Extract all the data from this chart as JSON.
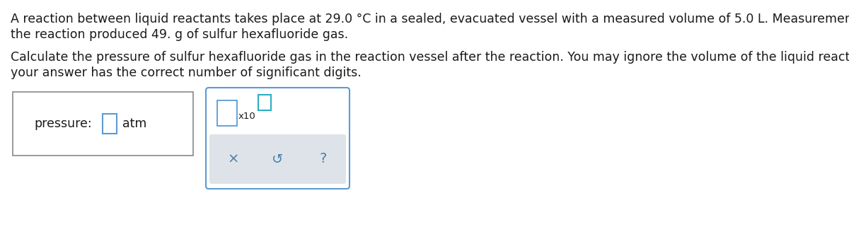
{
  "background_color": "#ffffff",
  "text_color": "#1a1a1a",
  "para1_line1": "A reaction between liquid reactants takes place at 29.0 °C in a sealed, evacuated vessel with a measured volume of 5.0 L. Measurements show that",
  "para1_line2": "the reaction produced 49. g of sulfur hexafluoride gas.",
  "para2_line1": "Calculate the pressure of sulfur hexafluoride gas in the reaction vessel after the reaction. You may ignore the volume of the liquid reactants. Be sure",
  "para2_line2": "your answer has the correct number of significant digits.",
  "label_pressure": "pressure:",
  "label_atm": "atm",
  "input_field_border": "#5b9bd5",
  "calc_box_border": "#5b9bd5",
  "bottom_bar_bg": "#dde3e8",
  "symbol_color": "#4a7fa8",
  "exponent_color": "#5b9bd5",
  "font_size_main": 12.5,
  "font_size_label": 12.5,
  "font_size_symbol": 14
}
